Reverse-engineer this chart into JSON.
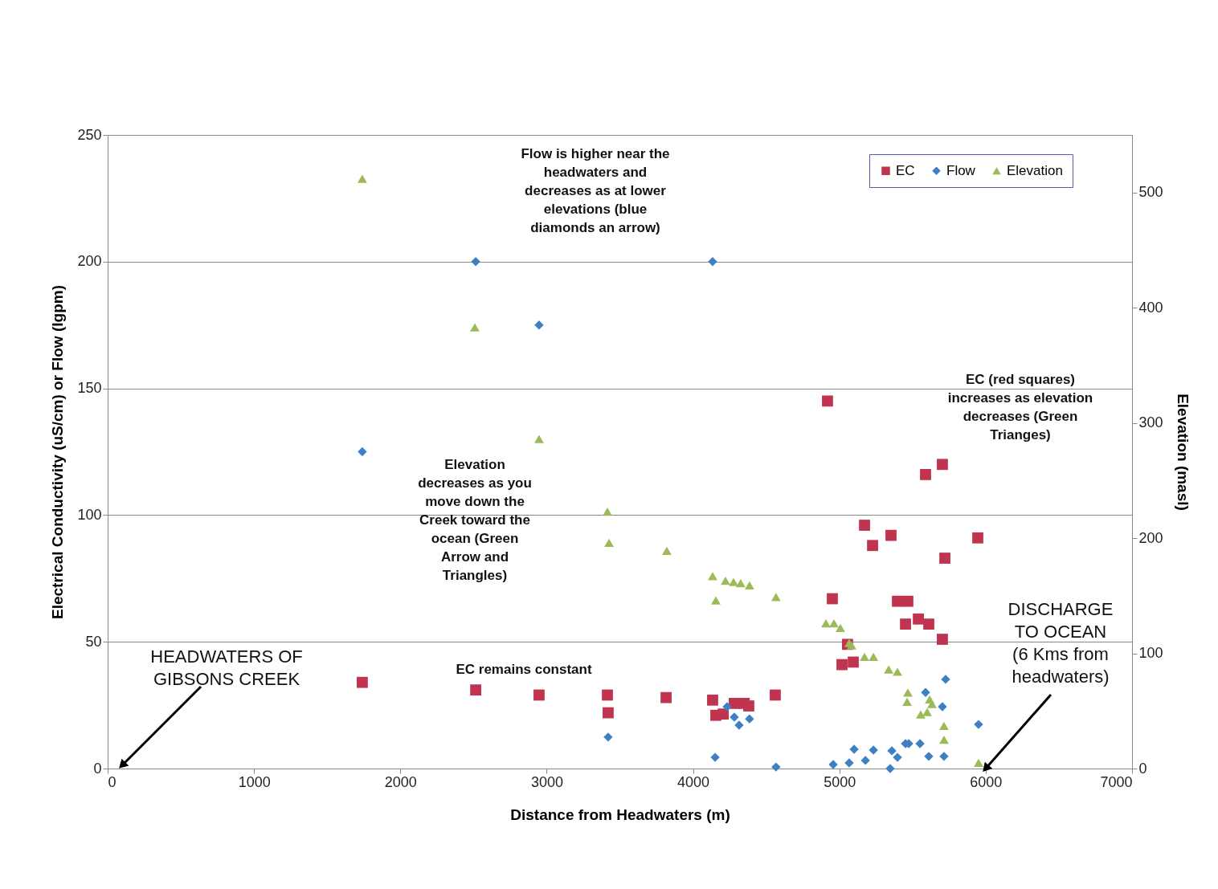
{
  "chart_data": {
    "type": "scatter",
    "xlabel": "Distance from Headwaters (m)",
    "ylabel": "Electrical Conductivity (uS/cm) or Flow (Igpm)",
    "y2label": "Elevation (masl)",
    "xlim": [
      0,
      7000
    ],
    "xticks": [
      0,
      1000,
      2000,
      3000,
      4000,
      5000,
      6000,
      7000
    ],
    "ylim": [
      0,
      250
    ],
    "yticks": [
      0,
      50,
      100,
      150,
      200,
      250
    ],
    "y2lim": [
      0,
      550
    ],
    "y2ticks": [
      0,
      100,
      200,
      300,
      400,
      500
    ],
    "grid": "y",
    "legend": "top right",
    "series": [
      {
        "name": "EC",
        "color": "#c0344f",
        "marker": "square",
        "x": [
          1740,
          2515,
          2948,
          3415,
          3420,
          3816,
          4134,
          4156,
          4206,
          4282,
          4350,
          4381,
          4562,
          4919,
          4952,
          5056,
          5018,
          5095,
          5172,
          5227,
          5353,
          5397,
          5468,
          5452,
          5540,
          5611,
          5589,
          5704,
          5721,
          5704,
          5946
        ],
        "values": [
          34,
          31,
          29,
          29,
          22,
          28,
          27,
          21,
          21.5,
          25.7,
          25.7,
          24.7,
          29,
          145,
          67,
          49,
          41,
          42,
          96,
          88,
          92,
          66,
          66,
          57,
          59,
          57,
          116,
          120,
          83,
          51,
          91
        ]
      },
      {
        "name": "Flow",
        "color": "#3f7fc4",
        "marker": "diamond",
        "x": [
          1740,
          2515,
          2948,
          4134,
          3420,
          4151,
          4233,
          4282,
          4315,
          4386,
          4567,
          4958,
          5067,
          5101,
          5178,
          5233,
          5347,
          5359,
          5397,
          5452,
          5474,
          5551,
          5611,
          5589,
          5704,
          5715,
          5726,
          5951
        ],
        "values": [
          125,
          200,
          175,
          200,
          12.4,
          4.4,
          24.4,
          20.3,
          17.1,
          19.6,
          0.6,
          1.6,
          2.2,
          7.6,
          3.2,
          7.3,
          0,
          7,
          4.4,
          9.8,
          9.8,
          9.8,
          4.8,
          30,
          24.4,
          4.8,
          35.2,
          17.4
        ]
      },
      {
        "name": "Elevation",
        "color": "#9bbb59",
        "marker": "triangle",
        "axis": "y2",
        "x": [
          1740,
          2509,
          2948,
          3415,
          3426,
          3821,
          4134,
          4156,
          4222,
          4277,
          4326,
          4386,
          4567,
          4908,
          4963,
          5007,
          5067,
          5084,
          5172,
          5233,
          5337,
          5397,
          5463,
          5468,
          5556,
          5600,
          5633,
          5617,
          5715,
          5715,
          5951
        ],
        "values": [
          512,
          383,
          286,
          223,
          196,
          189,
          167,
          146,
          163,
          162,
          161,
          159,
          149,
          126,
          126,
          122,
          109,
          107,
          97,
          97,
          86,
          84,
          58,
          66,
          47,
          49,
          56,
          60,
          37,
          25,
          5
        ]
      }
    ],
    "annotations": [
      "Flow is higher near the\nheadwaters and\ndecreases as at lower\nelevations (blue\ndiamonds an arrow)",
      "Elevation\ndecreases as you\nmove down the\nCreek toward the\nocean (Green\nArrow and\nTriangles)",
      "EC remains constant",
      "EC (red squares)\nincreases as elevation\ndecreases (Green\nTrianges)",
      "HEADWATERS OF\nGIBSONS CREEK",
      {
        "text": "DISCHARGE\nTO OCEAN\n(6 Kms from\nheadwaters)",
        "x": 6000,
        "y": 0
      }
    ]
  }
}
